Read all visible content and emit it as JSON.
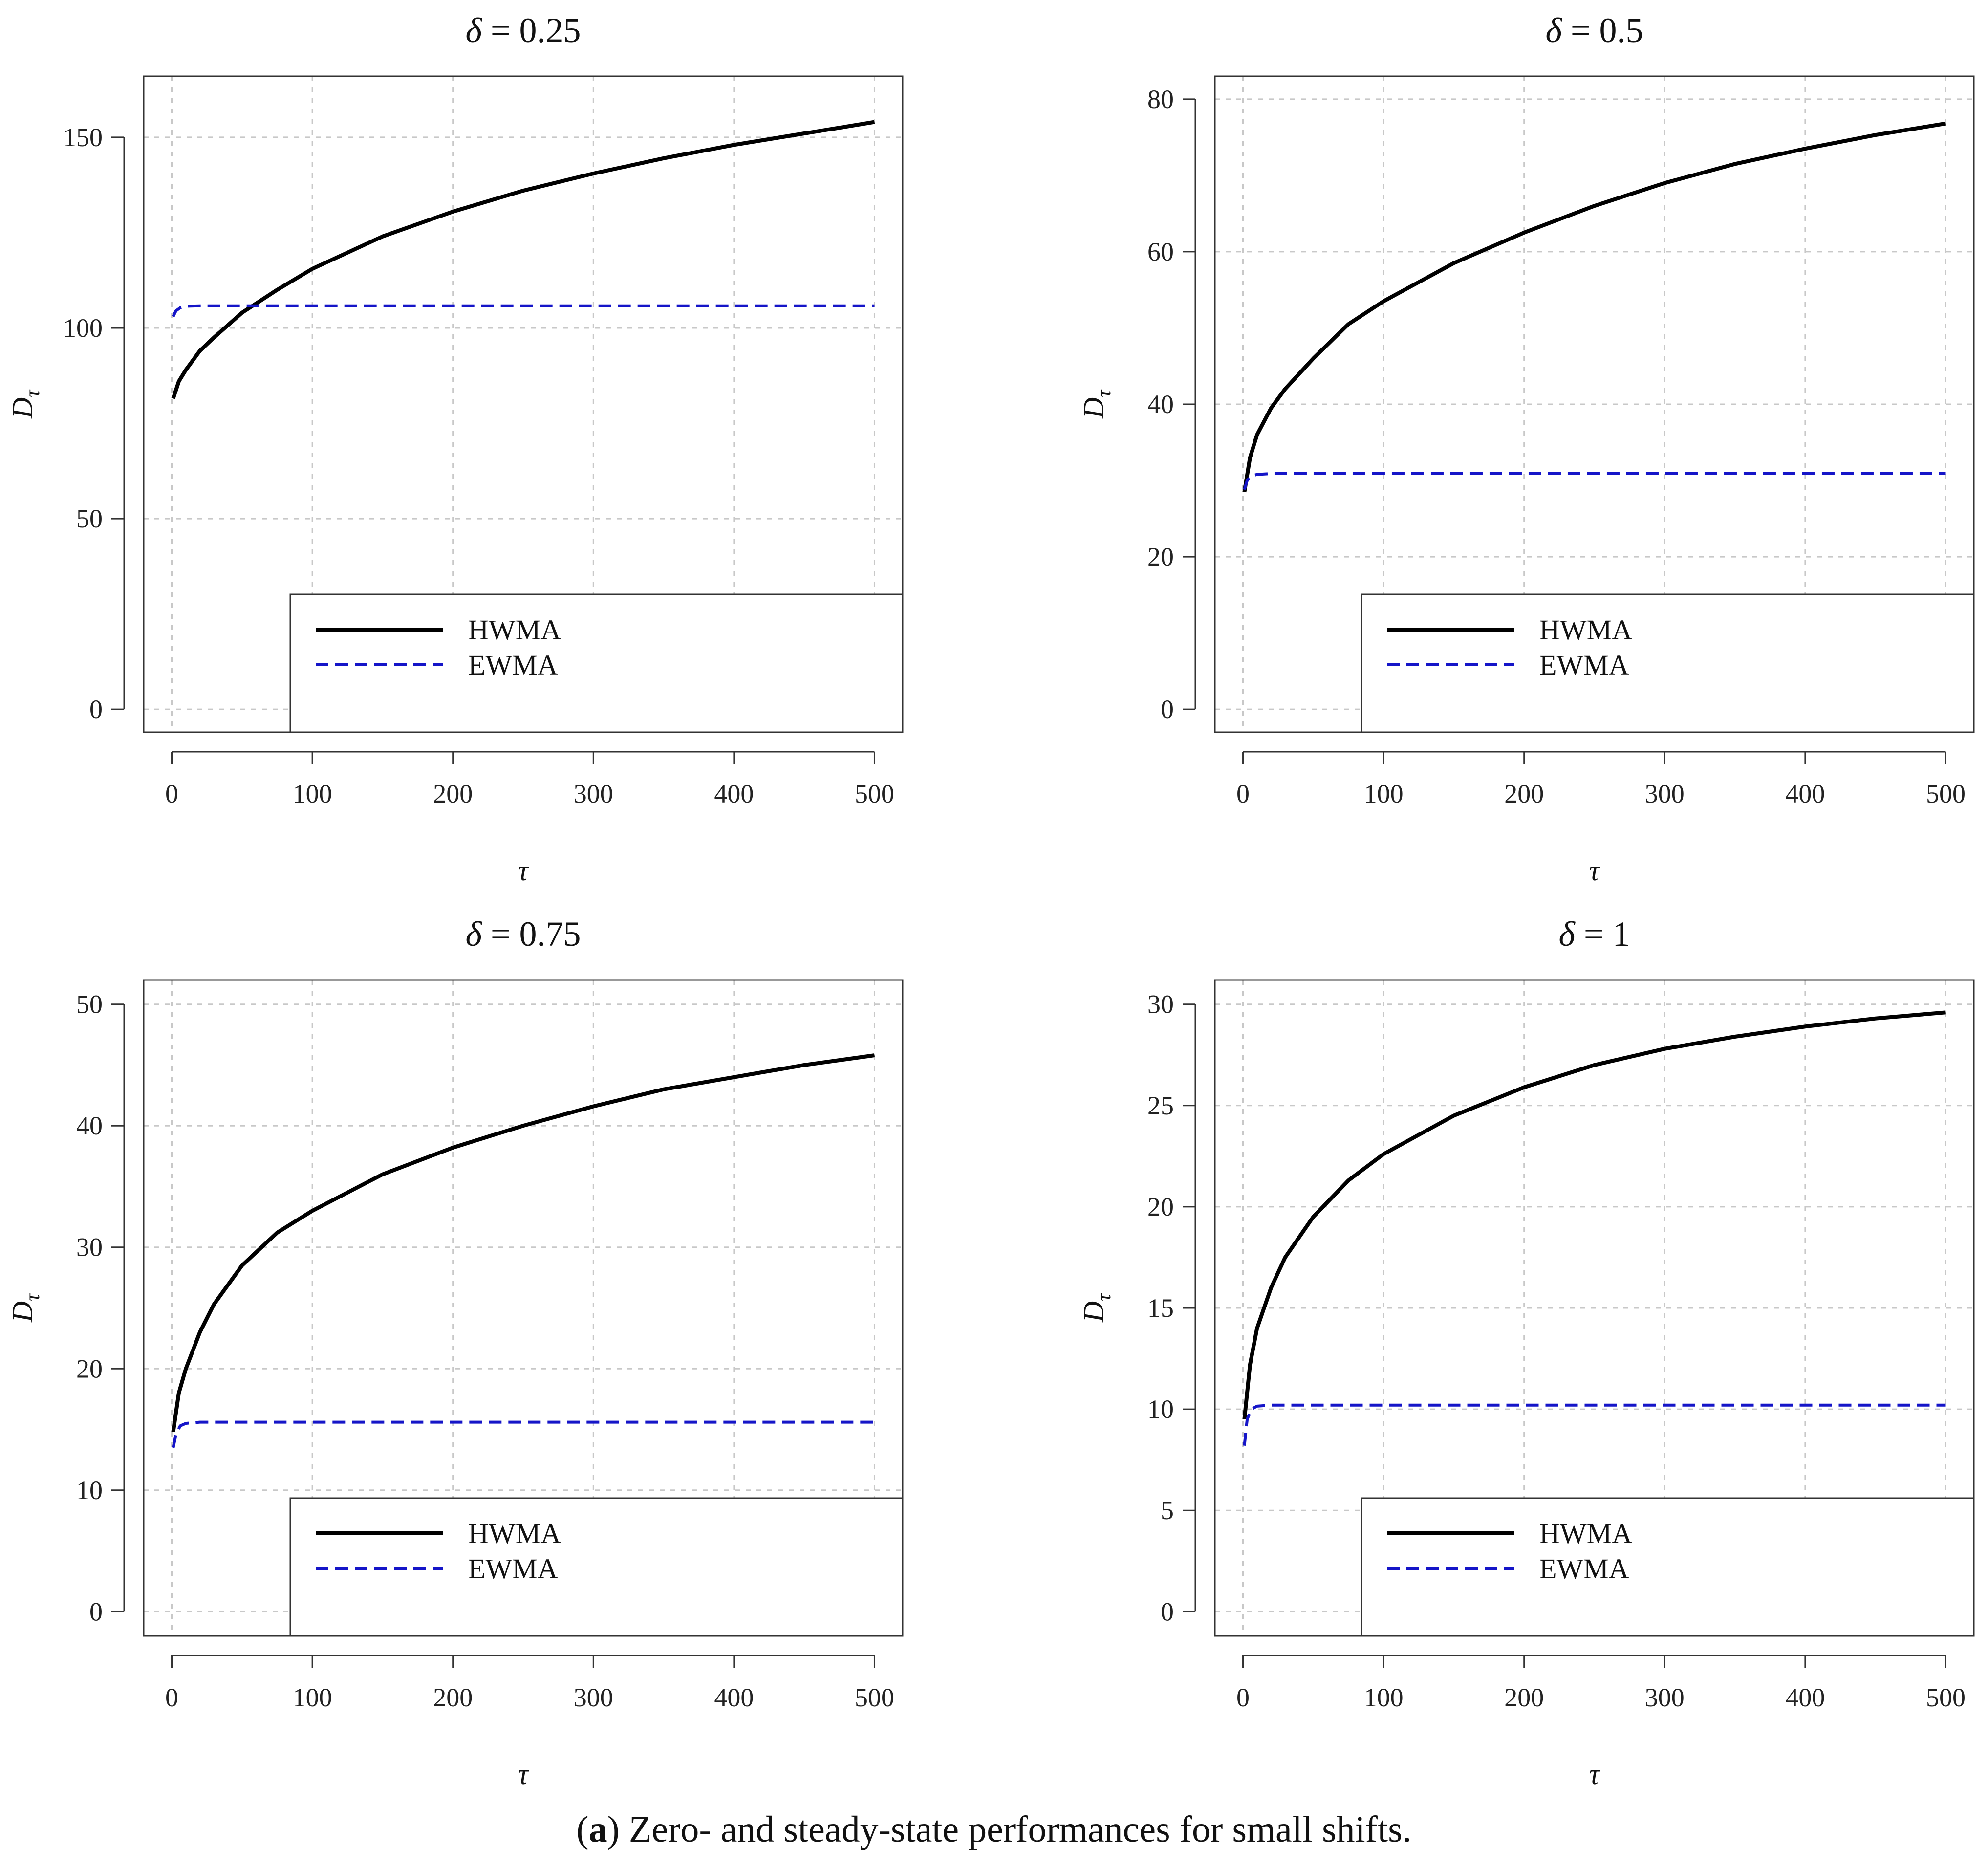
{
  "caption": {
    "label": "a",
    "open_paren": "(",
    "close_paren": ")",
    "text": " Zero- and steady-state performances for small shifts."
  },
  "colors": {
    "hwma": "#000000",
    "ewma": "#1515c8",
    "grid": "#c8c8c8",
    "axis": "#333333"
  },
  "chart_data": [
    {
      "type": "line",
      "title_symbol": "δ",
      "title_value": "= 0.25",
      "xlabel": "τ",
      "ylabel_main": "D",
      "ylabel_sub": "τ",
      "xlim": [
        -20,
        520
      ],
      "ylim": [
        -6,
        166
      ],
      "xticks": [
        0,
        100,
        200,
        300,
        400,
        500
      ],
      "yticks": [
        0,
        50,
        100,
        150
      ],
      "grid": true,
      "legend_position": "bottom-right",
      "series": [
        {
          "name": "HWMA",
          "style": "solid",
          "x": [
            1,
            5,
            10,
            20,
            30,
            50,
            75,
            100,
            150,
            200,
            250,
            300,
            350,
            400,
            450,
            500
          ],
          "values": [
            81.5,
            86,
            89,
            94,
            97.5,
            104,
            110,
            115.5,
            124,
            130.5,
            136,
            140.5,
            144.5,
            148,
            151,
            154
          ]
        },
        {
          "name": "EWMA",
          "style": "dashed",
          "x": [
            1,
            3,
            6,
            10,
            20,
            500
          ],
          "values": [
            103,
            104.5,
            105.3,
            105.7,
            105.8,
            105.8
          ]
        }
      ]
    },
    {
      "type": "line",
      "title_symbol": "δ",
      "title_value": "= 0.5",
      "xlabel": "τ",
      "ylabel_main": "D",
      "ylabel_sub": "τ",
      "xlim": [
        -20,
        520
      ],
      "ylim": [
        -3,
        83
      ],
      "xticks": [
        0,
        100,
        200,
        300,
        400,
        500
      ],
      "yticks": [
        0,
        20,
        40,
        60,
        80
      ],
      "grid": true,
      "legend_position": "bottom-right",
      "series": [
        {
          "name": "HWMA",
          "style": "solid",
          "x": [
            1,
            5,
            10,
            20,
            30,
            50,
            75,
            100,
            150,
            200,
            250,
            300,
            350,
            400,
            450,
            500
          ],
          "values": [
            28.5,
            33,
            36,
            39.5,
            42,
            46,
            50.5,
            53.5,
            58.5,
            62.5,
            66,
            69,
            71.5,
            73.5,
            75.3,
            76.8
          ]
        },
        {
          "name": "EWMA",
          "style": "dashed",
          "x": [
            1,
            3,
            6,
            10,
            20,
            500
          ],
          "values": [
            28.8,
            30,
            30.6,
            30.8,
            30.9,
            30.9
          ]
        }
      ]
    },
    {
      "type": "line",
      "title_symbol": "δ",
      "title_value": "= 0.75",
      "xlabel": "τ",
      "ylabel_main": "D",
      "ylabel_sub": "τ",
      "xlim": [
        -20,
        520
      ],
      "ylim": [
        -2,
        52
      ],
      "xticks": [
        0,
        100,
        200,
        300,
        400,
        500
      ],
      "yticks": [
        0,
        10,
        20,
        30,
        40,
        50
      ],
      "grid": true,
      "legend_position": "bottom-right",
      "series": [
        {
          "name": "HWMA",
          "style": "solid",
          "x": [
            1,
            5,
            10,
            20,
            30,
            50,
            75,
            100,
            150,
            200,
            250,
            300,
            350,
            400,
            450,
            500
          ],
          "values": [
            14.8,
            18,
            20,
            23,
            25.3,
            28.5,
            31.2,
            33,
            36,
            38.2,
            40,
            41.6,
            43,
            44,
            45,
            45.8
          ]
        },
        {
          "name": "EWMA",
          "style": "dashed",
          "x": [
            1,
            3,
            6,
            10,
            20,
            500
          ],
          "values": [
            13.5,
            14.6,
            15.3,
            15.5,
            15.6,
            15.6
          ]
        }
      ]
    },
    {
      "type": "line",
      "title_symbol": "δ",
      "title_value": "= 1",
      "xlabel": "τ",
      "ylabel_main": "D",
      "ylabel_sub": "τ",
      "xlim": [
        -20,
        520
      ],
      "ylim": [
        -1.2,
        31.2
      ],
      "xticks": [
        0,
        100,
        200,
        300,
        400,
        500
      ],
      "yticks": [
        0,
        5,
        10,
        15,
        20,
        25,
        30
      ],
      "grid": true,
      "legend_position": "bottom-right",
      "series": [
        {
          "name": "HWMA",
          "style": "solid",
          "x": [
            1,
            5,
            10,
            20,
            30,
            50,
            75,
            100,
            150,
            200,
            250,
            300,
            350,
            400,
            450,
            500
          ],
          "values": [
            9.5,
            12.2,
            14,
            16,
            17.5,
            19.5,
            21.3,
            22.6,
            24.5,
            25.9,
            27,
            27.8,
            28.4,
            28.9,
            29.3,
            29.6
          ]
        },
        {
          "name": "EWMA",
          "style": "dashed",
          "x": [
            1,
            3,
            6,
            10,
            20,
            500
          ],
          "values": [
            8.2,
            9.5,
            10,
            10.15,
            10.2,
            10.2
          ]
        }
      ]
    }
  ]
}
